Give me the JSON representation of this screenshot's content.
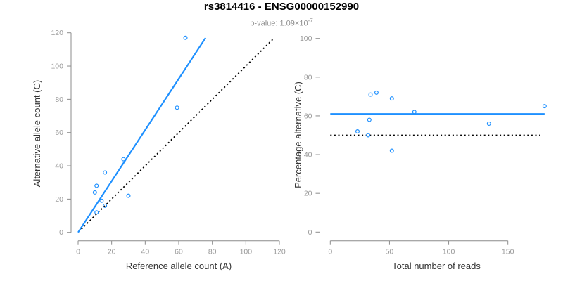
{
  "header": {
    "title": "rs3814416 - ENSG00000152990",
    "subtitle_prefix": "p-value: 1.09×10",
    "subtitle_exponent": "-7"
  },
  "colors": {
    "accent_blue": "#1E90FF",
    "axis_gray": "#8C8C8C",
    "tick_label_gray": "#9A9A9A",
    "axis_title_color": "#333333",
    "subtitle_gray": "#8F8F8F",
    "dotted_black": "#000000",
    "background": "#FFFFFF"
  },
  "chart_data": [
    {
      "type": "scatter",
      "panel": "left",
      "xlabel": "Reference allele count (A)",
      "ylabel": "Alternative allele count (C)",
      "xlim": [
        0,
        120
      ],
      "ylim": [
        0,
        120
      ],
      "xticks": [
        0,
        20,
        40,
        60,
        80,
        100,
        120
      ],
      "yticks": [
        0,
        20,
        40,
        60,
        80,
        100,
        120
      ],
      "grid": false,
      "legend": false,
      "marker": "open-circle",
      "points": [
        [
          10,
          24
        ],
        [
          11,
          12
        ],
        [
          11,
          28
        ],
        [
          14,
          19
        ],
        [
          16,
          16
        ],
        [
          16,
          36
        ],
        [
          27,
          44
        ],
        [
          30,
          22
        ],
        [
          59,
          75
        ],
        [
          64,
          117
        ]
      ],
      "lines": [
        {
          "name": "regression-line",
          "style": "solid",
          "color": "#1E90FF",
          "x1": 0,
          "y1": 0,
          "x2": 76,
          "y2": 117
        },
        {
          "name": "identity-line",
          "style": "dotted",
          "color": "#000000",
          "x1": 2,
          "y1": 2,
          "x2": 116,
          "y2": 116
        }
      ]
    },
    {
      "type": "scatter",
      "panel": "right",
      "xlabel": "Total number of reads",
      "ylabel": "Percentage alternative (C)",
      "xlim": [
        0,
        181
      ],
      "ylim": [
        0,
        100
      ],
      "xticks": [
        0,
        50,
        100,
        150
      ],
      "yticks": [
        0,
        20,
        40,
        60,
        80,
        100
      ],
      "grid": false,
      "legend": false,
      "marker": "open-circle",
      "points": [
        [
          23,
          52
        ],
        [
          32,
          50
        ],
        [
          33,
          58
        ],
        [
          34,
          71
        ],
        [
          39,
          72
        ],
        [
          52,
          42
        ],
        [
          52,
          69
        ],
        [
          71,
          62
        ],
        [
          134,
          56
        ],
        [
          181,
          65
        ]
      ],
      "lines": [
        {
          "name": "mean-percentage-line",
          "style": "solid",
          "color": "#1E90FF",
          "x1": 0,
          "y1": 61,
          "x2": 181,
          "y2": 61
        },
        {
          "name": "fifty-percent-line",
          "style": "dotted",
          "color": "#000000",
          "x1": 0,
          "y1": 50,
          "x2": 177,
          "y2": 50
        }
      ]
    }
  ]
}
